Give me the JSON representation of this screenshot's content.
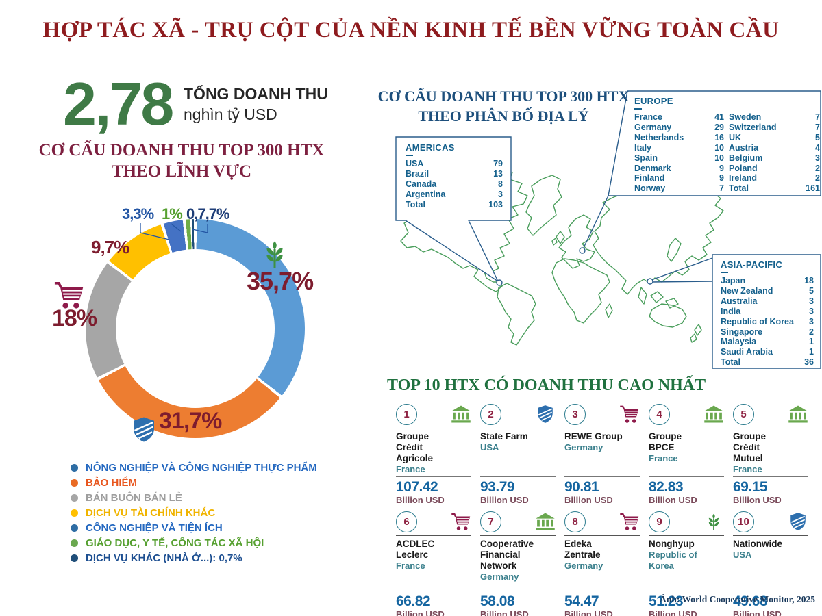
{
  "header": {
    "title": "HỢP TÁC XÃ - TRỤ CỘT CỦA NỀN KINH TẾ BỀN VỮNG TOÀN CẦU"
  },
  "summary": {
    "value": "2,78",
    "label1": "TỔNG DOANH THU",
    "label2": "nghìn tỷ USD"
  },
  "sector": {
    "title1": "CƠ CẤU DOANH THU TOP 300 HTX",
    "title2": "THEO LĨNH VỰC",
    "pct_agriculture": "35,7%",
    "pct_insurance": "31,7%",
    "pct_retail": "18%",
    "pct_finance": "9,7%",
    "pct_industry": "3,3%",
    "pct_education": "1%",
    "pct_other": "0,7,7%",
    "legend": [
      {
        "label": "NÔNG NGHIỆP VÀ CÔNG NGHIỆP THỰC PHẨM",
        "color": "#2468c0"
      },
      {
        "label": "BẢO HIỂM",
        "color": "#e8571f"
      },
      {
        "label": "BÁN BUÔN BÁN LẺ",
        "color": "#9e9e9e"
      },
      {
        "label": "DỊCH VỤ TÀI CHÍNH KHÁC",
        "color": "#f0b400"
      },
      {
        "label": "CÔNG NGHIỆP VÀ TIỆN ÍCH",
        "color": "#2468c0"
      },
      {
        "label": "GIÁO DỤC, Y TẾ, CÔNG TÁC XÃ HỘI",
        "color": "#56a030"
      },
      {
        "label": "DỊCH VỤ KHÁC (NHÀ Ở...): 0,7%",
        "color": "#1d4f91"
      }
    ]
  },
  "geo": {
    "title1": "CƠ CẤU DOANH THU TOP 300 HTX",
    "title2": "THEO PHÂN BỐ ĐỊA LÝ",
    "americas": {
      "title": "AMERICAS",
      "rows": [
        {
          "name": "USA",
          "value": "79"
        },
        {
          "name": "Brazil",
          "value": "13"
        },
        {
          "name": "Canada",
          "value": "8"
        },
        {
          "name": "Argentina",
          "value": "3"
        }
      ],
      "total": {
        "name": "Total",
        "value": "103"
      }
    },
    "europe": {
      "title": "EUROPE",
      "left": [
        {
          "name": "France",
          "value": "41"
        },
        {
          "name": "Germany",
          "value": "29"
        },
        {
          "name": "Netherlands",
          "value": "16"
        },
        {
          "name": "Italy",
          "value": "10"
        },
        {
          "name": "Spain",
          "value": "10"
        },
        {
          "name": "Denmark",
          "value": "9"
        },
        {
          "name": "Finland",
          "value": "9"
        },
        {
          "name": "Norway",
          "value": "7"
        }
      ],
      "right": [
        {
          "name": "Sweden",
          "value": "7"
        },
        {
          "name": "Switzerland",
          "value": "7"
        },
        {
          "name": "UK",
          "value": "5"
        },
        {
          "name": "Austria",
          "value": "4"
        },
        {
          "name": "Belgium",
          "value": "3"
        },
        {
          "name": "Poland",
          "value": "2"
        },
        {
          "name": "Ireland",
          "value": "2"
        },
        {
          "name": "Total",
          "value": "161"
        }
      ]
    },
    "asia": {
      "title": "ASIA-PACIFIC",
      "rows": [
        {
          "name": "Japan",
          "value": "18"
        },
        {
          "name": "New Zealand",
          "value": "5"
        },
        {
          "name": "Australia",
          "value": "3"
        },
        {
          "name": "India",
          "value": "3"
        },
        {
          "name": "Republic of Korea",
          "value": "3"
        },
        {
          "name": "Singapore",
          "value": "2"
        },
        {
          "name": "Malaysia",
          "value": "1"
        },
        {
          "name": "Saudi Arabia",
          "value": "1"
        }
      ],
      "total": {
        "name": "Total",
        "value": "36"
      }
    }
  },
  "top10": {
    "title": "TOP 10 HTX CÓ DOANH THU CAO NHẤT",
    "cards": [
      {
        "rank": "1",
        "icon": "bank",
        "name": "Groupe Crédit Agricole",
        "country": "France",
        "value": "107.42",
        "unit": "Billion USD"
      },
      {
        "rank": "2",
        "icon": "shield",
        "name": "State Farm",
        "country": "USA",
        "value": "93.79",
        "unit": "Billion USD"
      },
      {
        "rank": "3",
        "icon": "cart",
        "name": "REWE Group",
        "country": "Germany",
        "value": "90.81",
        "unit": "Billion USD"
      },
      {
        "rank": "4",
        "icon": "bank",
        "name": "Groupe BPCE",
        "country": "France",
        "value": "82.83",
        "unit": "Billion USD"
      },
      {
        "rank": "5",
        "icon": "bank",
        "name": "Groupe Crédit Mutuel",
        "country": "France",
        "value": "69.15",
        "unit": "Billion USD"
      },
      {
        "rank": "6",
        "icon": "cart",
        "name": "ACDLEC Leclerc",
        "country": "France",
        "value": "66.82",
        "unit": "Billion USD"
      },
      {
        "rank": "7",
        "icon": "bank",
        "name": "Cooperative Financial Network",
        "country": "Germany",
        "value": "58.08",
        "unit": "Billion USD"
      },
      {
        "rank": "8",
        "icon": "cart",
        "name": "Edeka Zentrale",
        "country": "Germany",
        "value": "54.47",
        "unit": "Billion USD"
      },
      {
        "rank": "9",
        "icon": "plant",
        "name": "Nonghyup",
        "country": "Republic of Korea",
        "value": "51.23",
        "unit": "Billion USD"
      },
      {
        "rank": "10",
        "icon": "shield",
        "name": "Nationwide",
        "country": "USA",
        "value": "49.68",
        "unit": "Billion USD"
      }
    ]
  },
  "credit": "Ảnh: World Cooperative Monitor, 2025",
  "colors": {
    "title_red": "#8e1b1e",
    "sector_maroon": "#7d2040",
    "geo_navy": "#1d4f7c",
    "top10_green": "#20713f",
    "big_number_green": "#3f7a46",
    "map_outline_green": "#4a9e5c",
    "table_text": "#14608c",
    "value_blue": "#1565a0",
    "unit_maroon": "#7a4a5a"
  },
  "chart_data": [
    {
      "type": "pie",
      "subtype": "donut",
      "title": "CƠ CẤU DOANH THU TOP 300 HTX THEO LĨNH VỰC",
      "labels": [
        "NÔNG NGHIỆP VÀ CÔNG NGHIỆP THỰC PHẨM",
        "BẢO HIỂM",
        "BÁN BUÔN BÁN LẺ",
        "DỊCH VỤ TÀI CHÍNH KHÁC",
        "CÔNG NGHIỆP VÀ TIỆN ÍCH",
        "GIÁO DỤC, Y TẾ, CÔNG TÁC XÃ HỘI",
        "DỊCH VỤ KHÁC (NHÀ Ở...)"
      ],
      "values": [
        35.7,
        31.7,
        18,
        9.7,
        3.3,
        1,
        0.7
      ],
      "unit": "%",
      "colors": [
        "#5b9bd5",
        "#ed7d31",
        "#a6a6a6",
        "#ffc000",
        "#4472c4",
        "#70ad47",
        "#1f4e79"
      ],
      "legend_position": "bottom-left",
      "total_note": "Tổng doanh thu 2,78 nghìn tỷ USD"
    },
    {
      "type": "table",
      "title": "CƠ CẤU DOANH THU TOP 300 HTX THEO PHÂN BỐ ĐỊA LÝ",
      "regions": [
        {
          "name": "AMERICAS",
          "rows": [
            [
              "USA",
              79
            ],
            [
              "Brazil",
              13
            ],
            [
              "Canada",
              8
            ],
            [
              "Argentina",
              3
            ]
          ],
          "total": 103
        },
        {
          "name": "EUROPE",
          "rows": [
            [
              "France",
              41
            ],
            [
              "Germany",
              29
            ],
            [
              "Netherlands",
              16
            ],
            [
              "Italy",
              10
            ],
            [
              "Spain",
              10
            ],
            [
              "Denmark",
              9
            ],
            [
              "Finland",
              9
            ],
            [
              "Norway",
              7
            ],
            [
              "Sweden",
              7
            ],
            [
              "Switzerland",
              7
            ],
            [
              "UK",
              5
            ],
            [
              "Austria",
              4
            ],
            [
              "Belgium",
              3
            ],
            [
              "Poland",
              2
            ],
            [
              "Ireland",
              2
            ]
          ],
          "total": 161
        },
        {
          "name": "ASIA-PACIFIC",
          "rows": [
            [
              "Japan",
              18
            ],
            [
              "New Zealand",
              5
            ],
            [
              "Australia",
              3
            ],
            [
              "India",
              3
            ],
            [
              "Republic of Korea",
              3
            ],
            [
              "Singapore",
              2
            ],
            [
              "Malaysia",
              1
            ],
            [
              "Saudi Arabia",
              1
            ]
          ],
          "total": 36
        }
      ]
    },
    {
      "type": "bar",
      "title": "TOP 10 HTX CÓ DOANH THU CAO NHẤT",
      "categories": [
        "Groupe Crédit Agricole (France)",
        "State Farm (USA)",
        "REWE Group (Germany)",
        "Groupe BPCE (France)",
        "Groupe Crédit Mutuel (France)",
        "ACDLEC Leclerc (France)",
        "Cooperative Financial Network (Germany)",
        "Edeka Zentrale (Germany)",
        "Nonghyup (Republic of Korea)",
        "Nationwide (USA)"
      ],
      "values": [
        107.42,
        93.79,
        90.81,
        82.83,
        69.15,
        66.82,
        58.08,
        54.47,
        51.23,
        49.68
      ],
      "ylabel": "Billion USD"
    }
  ]
}
